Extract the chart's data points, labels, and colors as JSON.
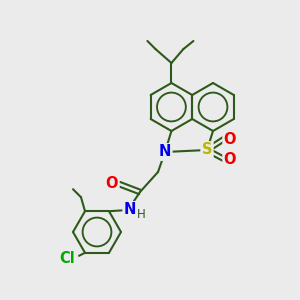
{
  "background_color": "#ebebeb",
  "bond_color": "#2d5a1b",
  "S_color": "#b8b800",
  "N_color": "#0000ee",
  "O_color": "#ee0000",
  "Cl_color": "#00aa00",
  "lw": 1.5,
  "r_hex": 26,
  "figsize": [
    3.0,
    3.0
  ],
  "dpi": 100,
  "atoms": {
    "S": "#b8b800",
    "N": "#0000ee",
    "O": "#ee0000",
    "Cl": "#00aa00"
  }
}
